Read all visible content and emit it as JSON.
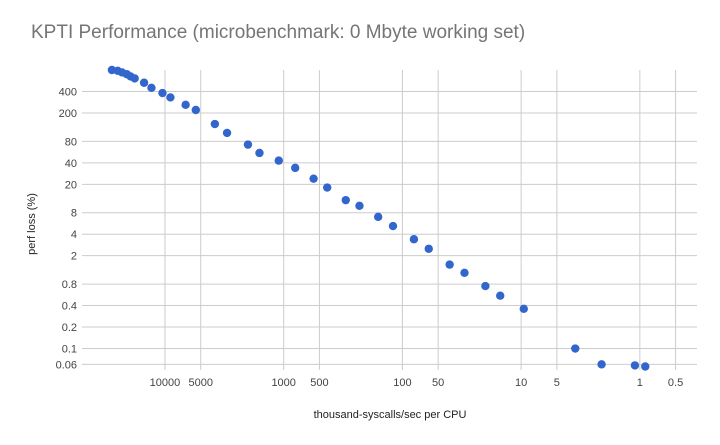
{
  "chart_data": {
    "type": "scatter",
    "title": "KPTI Performance (microbenchmark: 0 Mbyte working set)",
    "xlabel": "thousand-syscalls/sec per CPU",
    "ylabel": "perf loss (%)",
    "x_scale": "log-reversed",
    "y_scale": "log",
    "xlim": [
      50000,
      0.33
    ],
    "ylim": [
      0.05,
      800
    ],
    "x_ticks": [
      10000,
      5000,
      1000,
      500,
      100,
      50,
      10,
      5,
      1,
      0.5
    ],
    "x_tick_labels": [
      "10000",
      "5000",
      "1000",
      "500",
      "100",
      "50",
      "10",
      "5",
      "1",
      "0.5"
    ],
    "y_ticks": [
      0.06,
      0.1,
      0.2,
      0.4,
      0.8,
      2,
      4,
      8,
      20,
      40,
      80,
      200,
      400
    ],
    "y_tick_labels": [
      "0.06",
      "0.1",
      "0.2",
      "0.4",
      "0.8",
      "2",
      "4",
      "8",
      "20",
      "40",
      "80",
      "200",
      "400"
    ],
    "points": [
      {
        "x": 28000,
        "y": 800
      },
      {
        "x": 25000,
        "y": 780
      },
      {
        "x": 23000,
        "y": 740
      },
      {
        "x": 21000,
        "y": 700
      },
      {
        "x": 19500,
        "y": 650
      },
      {
        "x": 18000,
        "y": 610
      },
      {
        "x": 15000,
        "y": 530
      },
      {
        "x": 13000,
        "y": 450
      },
      {
        "x": 10500,
        "y": 380
      },
      {
        "x": 9000,
        "y": 330
      },
      {
        "x": 6700,
        "y": 260
      },
      {
        "x": 5500,
        "y": 220
      },
      {
        "x": 3800,
        "y": 140
      },
      {
        "x": 3000,
        "y": 105
      },
      {
        "x": 2000,
        "y": 72
      },
      {
        "x": 1600,
        "y": 55
      },
      {
        "x": 1100,
        "y": 43
      },
      {
        "x": 800,
        "y": 34
      },
      {
        "x": 560,
        "y": 24
      },
      {
        "x": 430,
        "y": 18
      },
      {
        "x": 300,
        "y": 12
      },
      {
        "x": 230,
        "y": 10
      },
      {
        "x": 160,
        "y": 7
      },
      {
        "x": 120,
        "y": 5.2
      },
      {
        "x": 80,
        "y": 3.4
      },
      {
        "x": 60,
        "y": 2.5
      },
      {
        "x": 40,
        "y": 1.5
      },
      {
        "x": 30,
        "y": 1.15
      },
      {
        "x": 20,
        "y": 0.75
      },
      {
        "x": 15,
        "y": 0.55
      },
      {
        "x": 9.5,
        "y": 0.36
      },
      {
        "x": 3.5,
        "y": 0.1
      },
      {
        "x": 2.1,
        "y": 0.06
      },
      {
        "x": 1.1,
        "y": 0.058
      },
      {
        "x": 0.9,
        "y": 0.056
      }
    ]
  }
}
